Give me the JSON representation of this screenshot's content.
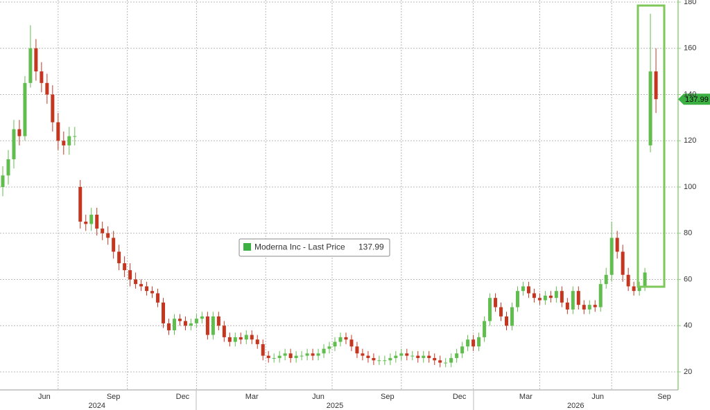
{
  "chart_data": {
    "type": "candlestick",
    "series_name": "Moderna Inc - Last Price",
    "up_color": "#62bd4f",
    "down_color": "#c4361f",
    "legend_color": "#3cb043",
    "open": [
      100,
      105,
      112,
      125,
      122,
      145,
      160,
      150,
      145,
      140,
      128,
      120,
      118,
      122,
      100,
      85,
      84,
      88,
      82,
      80,
      78,
      72,
      67,
      64,
      60,
      58,
      57,
      55,
      54,
      50,
      41,
      38,
      43,
      42,
      40,
      41,
      43,
      44,
      36,
      44,
      40,
      35,
      33,
      35,
      34,
      36,
      34,
      32,
      27,
      26,
      26,
      27,
      28,
      26,
      27,
      27,
      28,
      27,
      28,
      30,
      31,
      33,
      35,
      34,
      31,
      28,
      27,
      26,
      25,
      25,
      25,
      26,
      27,
      28,
      27,
      27,
      26,
      27,
      26,
      25,
      24,
      24,
      26,
      28,
      31,
      34,
      31,
      35,
      42,
      52,
      48,
      44,
      40,
      48,
      55,
      57,
      54,
      52,
      51,
      53,
      52,
      55,
      50,
      47,
      55,
      49,
      47,
      49,
      48,
      58,
      62,
      78,
      72,
      62,
      57,
      55,
      57,
      118,
      150
    ],
    "high": [
      109,
      116,
      129,
      129,
      148,
      170,
      164,
      154,
      149,
      144,
      132,
      124,
      126,
      126,
      103,
      88,
      91,
      91,
      85,
      83,
      81,
      75,
      70,
      67,
      63,
      60,
      59,
      57,
      56,
      52,
      43,
      45,
      45,
      44,
      43,
      45,
      46,
      46,
      46,
      46,
      42,
      37,
      37,
      37,
      38,
      38,
      36,
      34,
      29,
      28,
      29,
      30,
      30,
      29,
      29,
      30,
      30,
      30,
      32,
      33,
      35,
      37,
      37,
      36,
      33,
      30,
      29,
      28,
      27,
      27,
      28,
      29,
      30,
      30,
      29,
      29,
      29,
      29,
      28,
      27,
      26,
      28,
      30,
      33,
      36,
      36,
      37,
      44,
      54,
      54,
      50,
      46,
      50,
      57,
      59,
      59,
      56,
      54,
      55,
      55,
      57,
      57,
      52,
      57,
      57,
      51,
      51,
      51,
      60,
      65,
      85,
      81,
      75,
      65,
      59,
      59,
      65,
      175,
      160
    ],
    "low": [
      96,
      101,
      108,
      118,
      120,
      143,
      146,
      141,
      136,
      124,
      116,
      114,
      114,
      118,
      82,
      81,
      81,
      79,
      77,
      75,
      69,
      64,
      61,
      57,
      56,
      55,
      53,
      52,
      48,
      39,
      36,
      36,
      40,
      38,
      38,
      39,
      41,
      34,
      34,
      38,
      33,
      31,
      31,
      32,
      32,
      32,
      30,
      25,
      24,
      24,
      24,
      25,
      24,
      24,
      25,
      25,
      25,
      25,
      26,
      28,
      29,
      31,
      32,
      29,
      26,
      25,
      24,
      23,
      23,
      23,
      23,
      24,
      25,
      25,
      25,
      24,
      24,
      24,
      23,
      22,
      22,
      22,
      24,
      26,
      29,
      29,
      29,
      33,
      40,
      46,
      42,
      38,
      38,
      46,
      53,
      52,
      50,
      49,
      49,
      50,
      50,
      48,
      45,
      45,
      47,
      45,
      45,
      46,
      46,
      56,
      59,
      69,
      59,
      55,
      53,
      53,
      55,
      115,
      132
    ],
    "close": [
      105,
      112,
      125,
      122,
      145,
      160,
      150,
      145,
      140,
      128,
      120,
      118,
      122,
      122,
      85,
      84,
      88,
      82,
      80,
      78,
      72,
      67,
      64,
      60,
      58,
      57,
      55,
      54,
      50,
      41,
      38,
      43,
      42,
      40,
      41,
      43,
      44,
      36,
      44,
      40,
      35,
      33,
      35,
      34,
      36,
      34,
      32,
      27,
      26,
      26,
      27,
      28,
      26,
      27,
      27,
      28,
      27,
      28,
      30,
      31,
      33,
      35,
      34,
      31,
      28,
      27,
      26,
      25,
      25,
      25,
      26,
      27,
      28,
      27,
      27,
      26,
      27,
      26,
      25,
      24,
      24,
      26,
      28,
      31,
      34,
      31,
      35,
      42,
      52,
      48,
      44,
      40,
      48,
      55,
      57,
      54,
      52,
      51,
      53,
      52,
      55,
      50,
      47,
      55,
      49,
      47,
      49,
      48,
      58,
      62,
      78,
      72,
      62,
      57,
      55,
      57,
      63,
      150,
      137.99
    ],
    "ylim": [
      12.2,
      180.9
    ],
    "yticks": [
      20,
      40,
      60,
      80,
      100,
      120,
      140,
      160,
      180
    ],
    "xlim": [
      -0.5,
      122
    ],
    "xticks": [
      {
        "value": 10,
        "label": "Jun"
      },
      {
        "value": 22.5,
        "label": "Sep"
      },
      {
        "value": 35,
        "label": "Dec"
      },
      {
        "value": 47.5,
        "label": "Mar"
      },
      {
        "value": 59.5,
        "label": "Jun"
      },
      {
        "value": 72,
        "label": "Sep"
      },
      {
        "value": 85,
        "label": "Dec"
      },
      {
        "value": 97,
        "label": "Mar"
      },
      {
        "value": 110,
        "label": "Jun"
      },
      {
        "value": 122,
        "label": "Sep"
      }
    ],
    "year_labels": [
      {
        "value": 17,
        "label": "2024"
      },
      {
        "value": 60,
        "label": "2025"
      },
      {
        "value": 103.5,
        "label": "2026"
      }
    ],
    "grid": true
  }
}
